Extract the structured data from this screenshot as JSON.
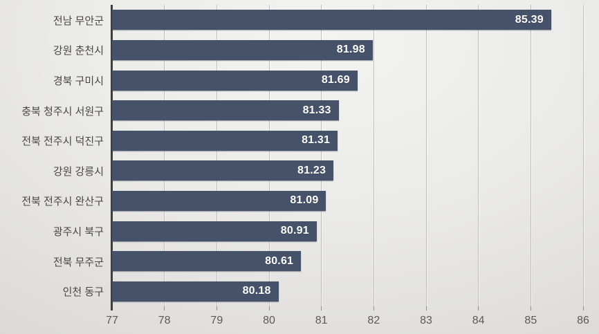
{
  "chart_data": {
    "type": "bar",
    "orientation": "horizontal",
    "title": "",
    "xlabel": "",
    "ylabel": "",
    "categories": [
      "전남 무안군",
      "강원 춘천시",
      "경북 구미시",
      "충북 청주시 서원구",
      "전북 전주시 덕진구",
      "강원 강릉시",
      "전북 전주시 완산구",
      "광주시 북구",
      "전북 무주군",
      "인천 동구"
    ],
    "values": [
      85.39,
      81.98,
      81.69,
      81.33,
      81.31,
      81.23,
      81.09,
      80.91,
      80.61,
      80.18
    ],
    "value_labels": [
      "85.39",
      "81.98",
      "81.69",
      "81.33",
      "81.31",
      "81.23",
      "81.09",
      "80.91",
      "80.61",
      "80.18"
    ],
    "xlim": [
      77,
      86
    ],
    "x_ticks": [
      "77",
      "78",
      "79",
      "80",
      "81",
      "82",
      "83",
      "84",
      "85",
      "86"
    ],
    "grid": true,
    "legend": false,
    "colors": {
      "bar": "#46526a",
      "gridline": "#b7b6b4",
      "axis_line": "#3e3e3e",
      "tick_label": "#5b5a59",
      "category_label": "#474645",
      "value_label": "#ffffff",
      "background_center": "#f3f3f1",
      "background_edge": "#d0cfcd"
    }
  }
}
